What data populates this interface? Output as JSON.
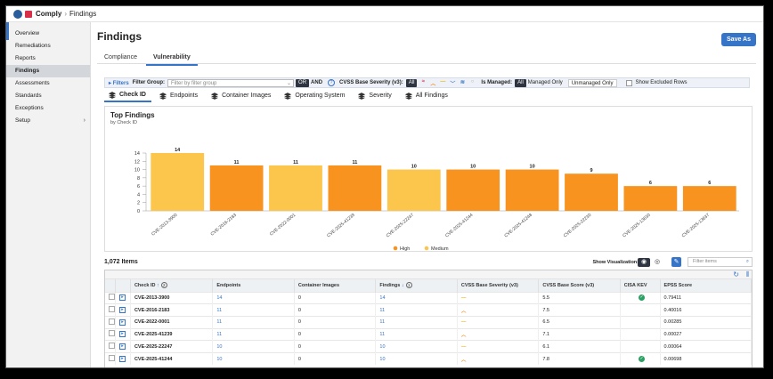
{
  "app": {
    "name": "Comply",
    "breadcrumb_sep": "›",
    "page": "Findings"
  },
  "sidebar": {
    "items": [
      {
        "label": "Overview",
        "active": false
      },
      {
        "label": "Remediations",
        "active": false
      },
      {
        "label": "Reports",
        "active": false
      },
      {
        "label": "Findings",
        "active": true
      },
      {
        "label": "Assessments",
        "active": false
      },
      {
        "label": "Standards",
        "active": false
      },
      {
        "label": "Exceptions",
        "active": false
      },
      {
        "label": "Setup",
        "active": false,
        "chevron": "›"
      }
    ]
  },
  "header": {
    "title": "Findings",
    "save_label": "Save As"
  },
  "tabs": [
    {
      "label": "Compliance",
      "active": false
    },
    {
      "label": "Vulnerability",
      "active": true
    }
  ],
  "filters": {
    "label": "Filters",
    "group_label": "Filter Group:",
    "group_placeholder": "Filter by filter group",
    "or_label": "OR",
    "and_label": "AND",
    "help": "?",
    "cvss_label": "CVSS Base Severity (v3):",
    "all_label": "All",
    "severity_icons": [
      "≈",
      "︿",
      "—",
      "﹀",
      "≋",
      "○"
    ],
    "managed_label": "Is Managed:",
    "managed_all": "All",
    "managed_only": "Managed Only",
    "unmanaged_only": "Unmanaged Only",
    "show_excluded": "Show Excluded Rows"
  },
  "view_tabs": [
    {
      "label": "Check ID",
      "active": true
    },
    {
      "label": "Endpoints",
      "active": false
    },
    {
      "label": "Container Images",
      "active": false
    },
    {
      "label": "Operating System",
      "active": false
    },
    {
      "label": "Severity",
      "active": false
    },
    {
      "label": "All Findings",
      "active": false
    }
  ],
  "chart": {
    "title": "Top Findings",
    "subtitle": "by Check ID"
  },
  "chart_data": {
    "type": "bar",
    "title": "Top Findings",
    "subtitle": "by Check ID",
    "categories": [
      "CVE-2013-3900",
      "CVE-2016-2183",
      "CVE-2022-0001",
      "CVE-2025-41239",
      "CVE-2025-22247",
      "CVE-2025-41244",
      "CVE-2025-41248",
      "CVE-2025-22230",
      "CVE-2025-13630",
      "CVE-2025-13637"
    ],
    "values": [
      14,
      11,
      11,
      11,
      10,
      10,
      10,
      9,
      6,
      6
    ],
    "severity": [
      "Medium",
      "High",
      "Medium",
      "High",
      "Medium",
      "High",
      "High",
      "High",
      "High",
      "High"
    ],
    "legend": [
      {
        "name": "High",
        "color": "#f7931e"
      },
      {
        "name": "Medium",
        "color": "#fcc54c"
      }
    ],
    "ylim": [
      0,
      14
    ],
    "yticks": [
      0,
      2,
      4,
      6,
      8,
      10,
      12,
      14
    ],
    "grid": false,
    "legend_position": "bottom"
  },
  "list": {
    "count_label": "1,072 Items",
    "show_viz_label": "Show Visualization:",
    "filter_placeholder": "Filter items",
    "columns": [
      "",
      "",
      "Check ID",
      "Endpoints",
      "Container Images",
      "Findings",
      "CVSS Base Severity (v3)",
      "CVSS Base Score (v3)",
      "CISA KEV",
      "EPSS Score"
    ],
    "rows": [
      {
        "check_id": "CVE-2013-3900",
        "endpoints": "14",
        "container_images": "0",
        "findings": "14",
        "severity": "—",
        "sev_color": "#f0b400",
        "score": "5.5",
        "kev": true,
        "epss": "0.79411"
      },
      {
        "check_id": "CVE-2016-2183",
        "endpoints": "11",
        "container_images": "0",
        "findings": "11",
        "severity": "︿",
        "sev_color": "#f28a1e",
        "score": "7.5",
        "kev": false,
        "epss": "0.40016"
      },
      {
        "check_id": "CVE-2022-0001",
        "endpoints": "11",
        "container_images": "0",
        "findings": "11",
        "severity": "—",
        "sev_color": "#f0b400",
        "score": "6.5",
        "kev": false,
        "epss": "0.00285"
      },
      {
        "check_id": "CVE-2025-41239",
        "endpoints": "11",
        "container_images": "0",
        "findings": "11",
        "severity": "︿",
        "sev_color": "#f28a1e",
        "score": "7.1",
        "kev": false,
        "epss": "0.00027"
      },
      {
        "check_id": "CVE-2025-22247",
        "endpoints": "10",
        "container_images": "0",
        "findings": "10",
        "severity": "—",
        "sev_color": "#f0b400",
        "score": "6.1",
        "kev": false,
        "epss": "0.00064"
      },
      {
        "check_id": "CVE-2025-41244",
        "endpoints": "10",
        "container_images": "0",
        "findings": "10",
        "severity": "︿",
        "sev_color": "#f28a1e",
        "score": "7.8",
        "kev": true,
        "epss": "0.00698"
      }
    ]
  },
  "colors": {
    "accent": "#3574c6",
    "high": "#f7931e",
    "medium": "#fcc54c"
  }
}
